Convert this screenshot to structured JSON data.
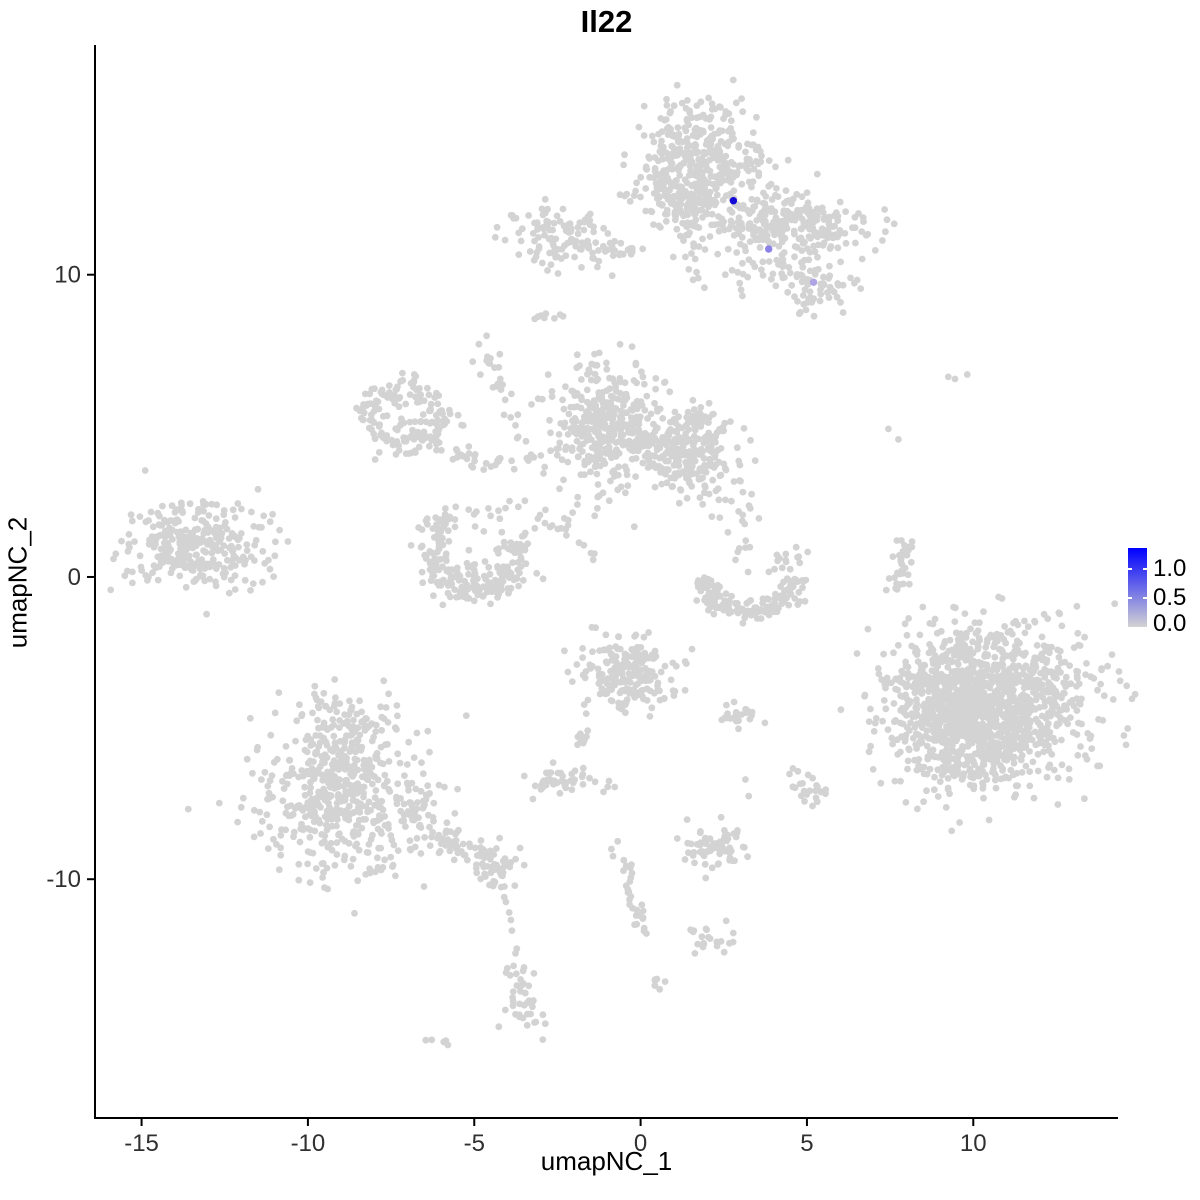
{
  "title": "Il22",
  "axes": {
    "x": {
      "label": "umapNC_1",
      "ticks": [
        -15,
        -10,
        -5,
        0,
        5,
        10
      ],
      "tick_labels": [
        "-15",
        "-10",
        "-5",
        "0",
        "5",
        "10"
      ]
    },
    "y": {
      "label": "umapNC_2",
      "ticks": [
        10,
        0,
        -10
      ],
      "tick_labels": [
        "10",
        "0",
        "-10"
      ]
    }
  },
  "legend": {
    "labels": {
      "max": "1.0",
      "mid": "0.5",
      "min": "0.0"
    },
    "high_color": "#0000FF",
    "low_color": "#D3D3D3"
  },
  "chart_data": {
    "type": "scatter",
    "title": "Il22",
    "xlabel": "umapNC_1",
    "ylabel": "umapNC_2",
    "xlim": [
      -16.4,
      14.35
    ],
    "ylim": [
      -17.9,
      17.6
    ],
    "grid": false,
    "legend_position": "right",
    "point_color": "#D3D3D3",
    "colorbar": {
      "min": 0.0,
      "mid": 0.5,
      "max": 1.0,
      "low": "#D3D3D3",
      "high": "#0000FF"
    },
    "clusters": [
      {
        "name": "top-main",
        "shape": "gauss",
        "c": [
          1.65,
          13.7
        ],
        "s": [
          1.0,
          0.95
        ],
        "n": 400
      },
      {
        "name": "top-main-lower",
        "shape": "gauss",
        "c": [
          1.2,
          12.4
        ],
        "s": [
          0.45,
          0.5
        ],
        "n": 50
      },
      {
        "name": "top-stem",
        "shape": "chain",
        "p1": [
          1.3,
          12.3
        ],
        "p2": [
          1.75,
          9.7
        ],
        "n": 26,
        "j": 0.22
      },
      {
        "name": "top-right-wing",
        "shape": "gauss",
        "c": [
          4.35,
          11.75
        ],
        "s": [
          1.5,
          0.5
        ],
        "n": 250,
        "rot": -8
      },
      {
        "name": "wing-below",
        "shape": "gauss",
        "c": [
          4.1,
          10.7
        ],
        "s": [
          0.9,
          0.55
        ],
        "n": 42
      },
      {
        "name": "wing-tail",
        "shape": "chain",
        "p1": [
          3.6,
          10.9
        ],
        "p2": [
          5.0,
          10.0
        ],
        "n": 10,
        "j": 0.15
      },
      {
        "name": "top-left-band",
        "shape": "gauss",
        "c": [
          -2.3,
          11.25
        ],
        "s": [
          0.85,
          0.5
        ],
        "n": 120,
        "rot": -12
      },
      {
        "name": "top-left-arm",
        "shape": "chain",
        "p1": [
          -1.3,
          10.75
        ],
        "p2": [
          0.15,
          10.85
        ],
        "n": 14,
        "j": 0.12
      },
      {
        "name": "right-nub",
        "shape": "gauss",
        "c": [
          5.35,
          9.6
        ],
        "s": [
          0.55,
          0.42
        ],
        "n": 55
      },
      {
        "name": "seven-group",
        "shape": "points",
        "pts": [
          [
            2.75,
            10.15
          ],
          [
            2.92,
            10.08
          ],
          [
            3.08,
            10.02
          ],
          [
            3.22,
            9.92
          ],
          [
            2.98,
            9.72
          ],
          [
            3.02,
            9.5
          ],
          [
            3.06,
            9.3
          ]
        ]
      },
      {
        "name": "sparse-under-wing",
        "shape": "gauss",
        "c": [
          2.6,
          10.9
        ],
        "s": [
          0.6,
          0.55
        ],
        "n": 10
      },
      {
        "name": "dash-upper",
        "shape": "gauss",
        "c": [
          -2.82,
          8.62
        ],
        "s": [
          0.3,
          0.1
        ],
        "n": 8
      },
      {
        "name": "knot-y",
        "shape": "gauss",
        "c": [
          -4.55,
          7.25
        ],
        "s": [
          0.27,
          0.33
        ],
        "n": 14
      },
      {
        "name": "knot-chain",
        "shape": "chain",
        "p1": [
          -4.32,
          6.5
        ],
        "p2": [
          -3.62,
          4.5
        ],
        "n": 13,
        "j": 0.12
      },
      {
        "name": "ring-left",
        "shape": "ring",
        "c": [
          -7.1,
          5.3
        ],
        "r": 1.0,
        "w": 0.6,
        "n": 150
      },
      {
        "name": "ring-inner",
        "shape": "gauss",
        "c": [
          -7.1,
          5.3
        ],
        "s": [
          0.3,
          0.3
        ],
        "n": 10
      },
      {
        "name": "ring-se-chain",
        "shape": "chain",
        "p1": [
          -6.4,
          4.6
        ],
        "p2": [
          -5.2,
          4.1
        ],
        "n": 10,
        "j": 0.15
      },
      {
        "name": "chain-horizontal",
        "shape": "chain",
        "p1": [
          -6.0,
          3.95
        ],
        "p2": [
          -3.45,
          3.8
        ],
        "n": 26,
        "j": 0.16
      },
      {
        "name": "mid-main",
        "shape": "gauss",
        "c": [
          -1.0,
          5.0
        ],
        "s": [
          0.8,
          0.95
        ],
        "n": 360
      },
      {
        "name": "mid-stem",
        "shape": "chain",
        "p1": [
          -1.3,
          6.5
        ],
        "p2": [
          -1.4,
          7.4
        ],
        "n": 7,
        "j": 0.1
      },
      {
        "name": "mid-bridge",
        "shape": "gauss",
        "c": [
          0.3,
          4.45
        ],
        "s": [
          0.4,
          0.4
        ],
        "n": 45
      },
      {
        "name": "mid-right",
        "shape": "gauss",
        "c": [
          1.6,
          4.2
        ],
        "s": [
          0.65,
          0.75
        ],
        "n": 235
      },
      {
        "name": "mid-dot",
        "shape": "points",
        "pts": [
          [
            2.55,
            2.55
          ]
        ]
      },
      {
        "name": "cross-sparse",
        "shape": "gauss",
        "c": [
          -3.0,
          2.3
        ],
        "s": [
          0.65,
          0.6
        ],
        "n": 16
      },
      {
        "name": "cross-diag",
        "shape": "chain",
        "p1": [
          -2.7,
          1.85
        ],
        "p2": [
          -1.45,
          0.75
        ],
        "n": 11,
        "j": 0.12
      },
      {
        "name": "c-ring-bottom",
        "shape": "arc",
        "c": [
          -5.0,
          0.85
        ],
        "r": 1.3,
        "w": 0.5,
        "a1": 120,
        "a2": 382,
        "n": 190
      },
      {
        "name": "c-ring-above",
        "shape": "gauss",
        "c": [
          -5.3,
          1.8
        ],
        "s": [
          0.75,
          0.35
        ],
        "n": 22
      },
      {
        "name": "c-ring-fill",
        "shape": "gauss",
        "c": [
          -4.7,
          0.1
        ],
        "s": [
          0.55,
          0.35
        ],
        "n": 30
      },
      {
        "name": "crescent",
        "shape": "arc",
        "c": [
          3.3,
          0.35
        ],
        "r": 1.5,
        "w": 0.42,
        "a1": 195,
        "a2": 345,
        "n": 150
      },
      {
        "name": "crescent-knot",
        "shape": "gauss",
        "c": [
          4.4,
          0.5
        ],
        "s": [
          0.25,
          0.28
        ],
        "n": 14
      },
      {
        "name": "crescent-above",
        "shape": "gauss",
        "c": [
          3.05,
          1.7
        ],
        "s": [
          0.5,
          0.8
        ],
        "n": 20
      },
      {
        "name": "right-chain",
        "shape": "chain",
        "p1": [
          8.05,
          1.2
        ],
        "p2": [
          7.7,
          -0.55
        ],
        "n": 34,
        "j": 0.15
      },
      {
        "name": "right-dots",
        "shape": "points",
        "pts": [
          [
            7.45,
            4.9
          ],
          [
            7.75,
            4.55
          ],
          [
            9.25,
            6.62
          ],
          [
            9.45,
            6.55
          ],
          [
            9.82,
            6.7
          ],
          [
            7.95,
            -1.55
          ]
        ]
      },
      {
        "name": "bottom-right-main",
        "shape": "gauss",
        "c": [
          10.4,
          -4.1
        ],
        "s": [
          1.45,
          1.3
        ],
        "n": 1250
      },
      {
        "name": "bottom-right-left-lobe",
        "shape": "gauss",
        "c": [
          8.95,
          -4.5
        ],
        "s": [
          0.55,
          0.75
        ],
        "n": 120
      },
      {
        "name": "bottom-right-bulge",
        "shape": "gauss",
        "c": [
          10.0,
          -5.9
        ],
        "s": [
          0.85,
          0.5
        ],
        "n": 110
      },
      {
        "name": "bottom-left-main",
        "shape": "gauss",
        "c": [
          -8.8,
          -7.3
        ],
        "s": [
          1.3,
          1.25
        ],
        "n": 480
      },
      {
        "name": "bottom-left-top",
        "shape": "gauss",
        "c": [
          -9.0,
          -5.3
        ],
        "s": [
          0.7,
          0.75
        ],
        "n": 100
      },
      {
        "name": "bottom-left-arm",
        "shape": "chain",
        "p1": [
          -7.1,
          -7.8
        ],
        "p2": [
          -4.4,
          -9.5
        ],
        "n": 85,
        "j": 0.28
      },
      {
        "name": "arm-knot",
        "shape": "gauss",
        "c": [
          -4.2,
          -9.7
        ],
        "s": [
          0.3,
          0.38
        ],
        "n": 40
      },
      {
        "name": "tail-dots",
        "shape": "points",
        "pts": [
          [
            -4.05,
            -10.75
          ],
          [
            -3.95,
            -11.1
          ],
          [
            -3.9,
            -11.35
          ],
          [
            -3.87,
            -11.7
          ],
          [
            -3.72,
            -12.3
          ],
          [
            -3.76,
            -12.45
          ]
        ]
      },
      {
        "name": "tail-column",
        "shape": "gauss",
        "c": [
          -3.55,
          -13.4
        ],
        "s": [
          0.18,
          0.5
        ],
        "n": 22
      },
      {
        "name": "tail-knot",
        "shape": "gauss",
        "c": [
          -3.4,
          -14.5
        ],
        "s": [
          0.4,
          0.3
        ],
        "n": 22,
        "rot": -20
      },
      {
        "name": "bottom-dash",
        "shape": "gauss",
        "c": [
          -6.05,
          -15.3
        ],
        "s": [
          0.3,
          0.09
        ],
        "n": 6,
        "rot": -25
      },
      {
        "name": "bottom-mid-cluster",
        "shape": "gauss",
        "c": [
          -0.45,
          -3.2
        ],
        "s": [
          0.72,
          0.62
        ],
        "n": 210
      },
      {
        "name": "bm-tail-left",
        "shape": "chain",
        "p1": [
          -1.5,
          -4.5
        ],
        "p2": [
          -1.8,
          -5.6
        ],
        "n": 10,
        "j": 0.1
      },
      {
        "name": "bm-dots",
        "shape": "points",
        "pts": [
          [
            -0.95,
            -6.75
          ],
          [
            -0.78,
            -6.95
          ]
        ]
      },
      {
        "name": "small-left-blob",
        "shape": "gauss",
        "c": [
          -2.45,
          -6.7
        ],
        "s": [
          0.5,
          0.32
        ],
        "n": 45
      },
      {
        "name": "bm-chain",
        "shape": "chain",
        "p1": [
          -0.85,
          -8.6
        ],
        "p2": [
          -0.12,
          -10.85
        ],
        "n": 20,
        "j": 0.13
      },
      {
        "name": "bm-chain-end",
        "shape": "gauss",
        "c": [
          -0.02,
          -11.25
        ],
        "s": [
          0.22,
          0.35
        ],
        "n": 12
      },
      {
        "name": "small-horizontal",
        "shape": "gauss",
        "c": [
          2.78,
          -4.62
        ],
        "s": [
          0.4,
          0.2
        ],
        "n": 22
      },
      {
        "name": "center-dots",
        "shape": "points",
        "pts": [
          [
            3.15,
            -6.7
          ],
          [
            3.25,
            -7.25
          ],
          [
            2.42,
            -7.95
          ]
        ]
      },
      {
        "name": "right-mid-blob-a",
        "shape": "gauss",
        "c": [
          4.9,
          -6.78
        ],
        "s": [
          0.28,
          0.25
        ],
        "n": 12
      },
      {
        "name": "right-mid-blob-b",
        "shape": "gauss",
        "c": [
          5.2,
          -7.15
        ],
        "s": [
          0.28,
          0.28
        ],
        "n": 12
      },
      {
        "name": "bottom-center-small",
        "shape": "gauss",
        "c": [
          2.3,
          -8.9
        ],
        "s": [
          0.55,
          0.35
        ],
        "n": 65
      },
      {
        "name": "bottom-blob",
        "shape": "gauss",
        "c": [
          2.25,
          -12.0
        ],
        "s": [
          0.4,
          0.28
        ],
        "n": 20
      },
      {
        "name": "bottom-blob-dot",
        "shape": "points",
        "pts": [
          [
            1.6,
            -11.7
          ]
        ]
      },
      {
        "name": "tiny-blob",
        "shape": "gauss",
        "c": [
          0.55,
          -13.45
        ],
        "s": [
          0.12,
          0.25
        ],
        "n": 6
      },
      {
        "name": "far-left",
        "shape": "gauss",
        "c": [
          -13.4,
          1.0
        ],
        "s": [
          1.0,
          0.78
        ],
        "n": 300
      },
      {
        "name": "far-left-outliers",
        "shape": "points",
        "pts": [
          [
            -11.5,
            2.9
          ],
          [
            -12.0,
            2.25
          ],
          [
            -11.7,
            2.15
          ],
          [
            -10.85,
            1.55
          ],
          [
            -11.6,
            1.05
          ],
          [
            -11.3,
            0.45
          ]
        ]
      }
    ],
    "highlighted_cells": [
      {
        "x": 2.79,
        "y": 12.45,
        "value": 1.4,
        "color": "#140AD7"
      },
      {
        "x": 3.85,
        "y": 10.85,
        "value": 0.5,
        "color": "#8C82E6"
      },
      {
        "x": 5.2,
        "y": 9.75,
        "value": 0.3,
        "color": "#AFA5E6"
      }
    ]
  }
}
